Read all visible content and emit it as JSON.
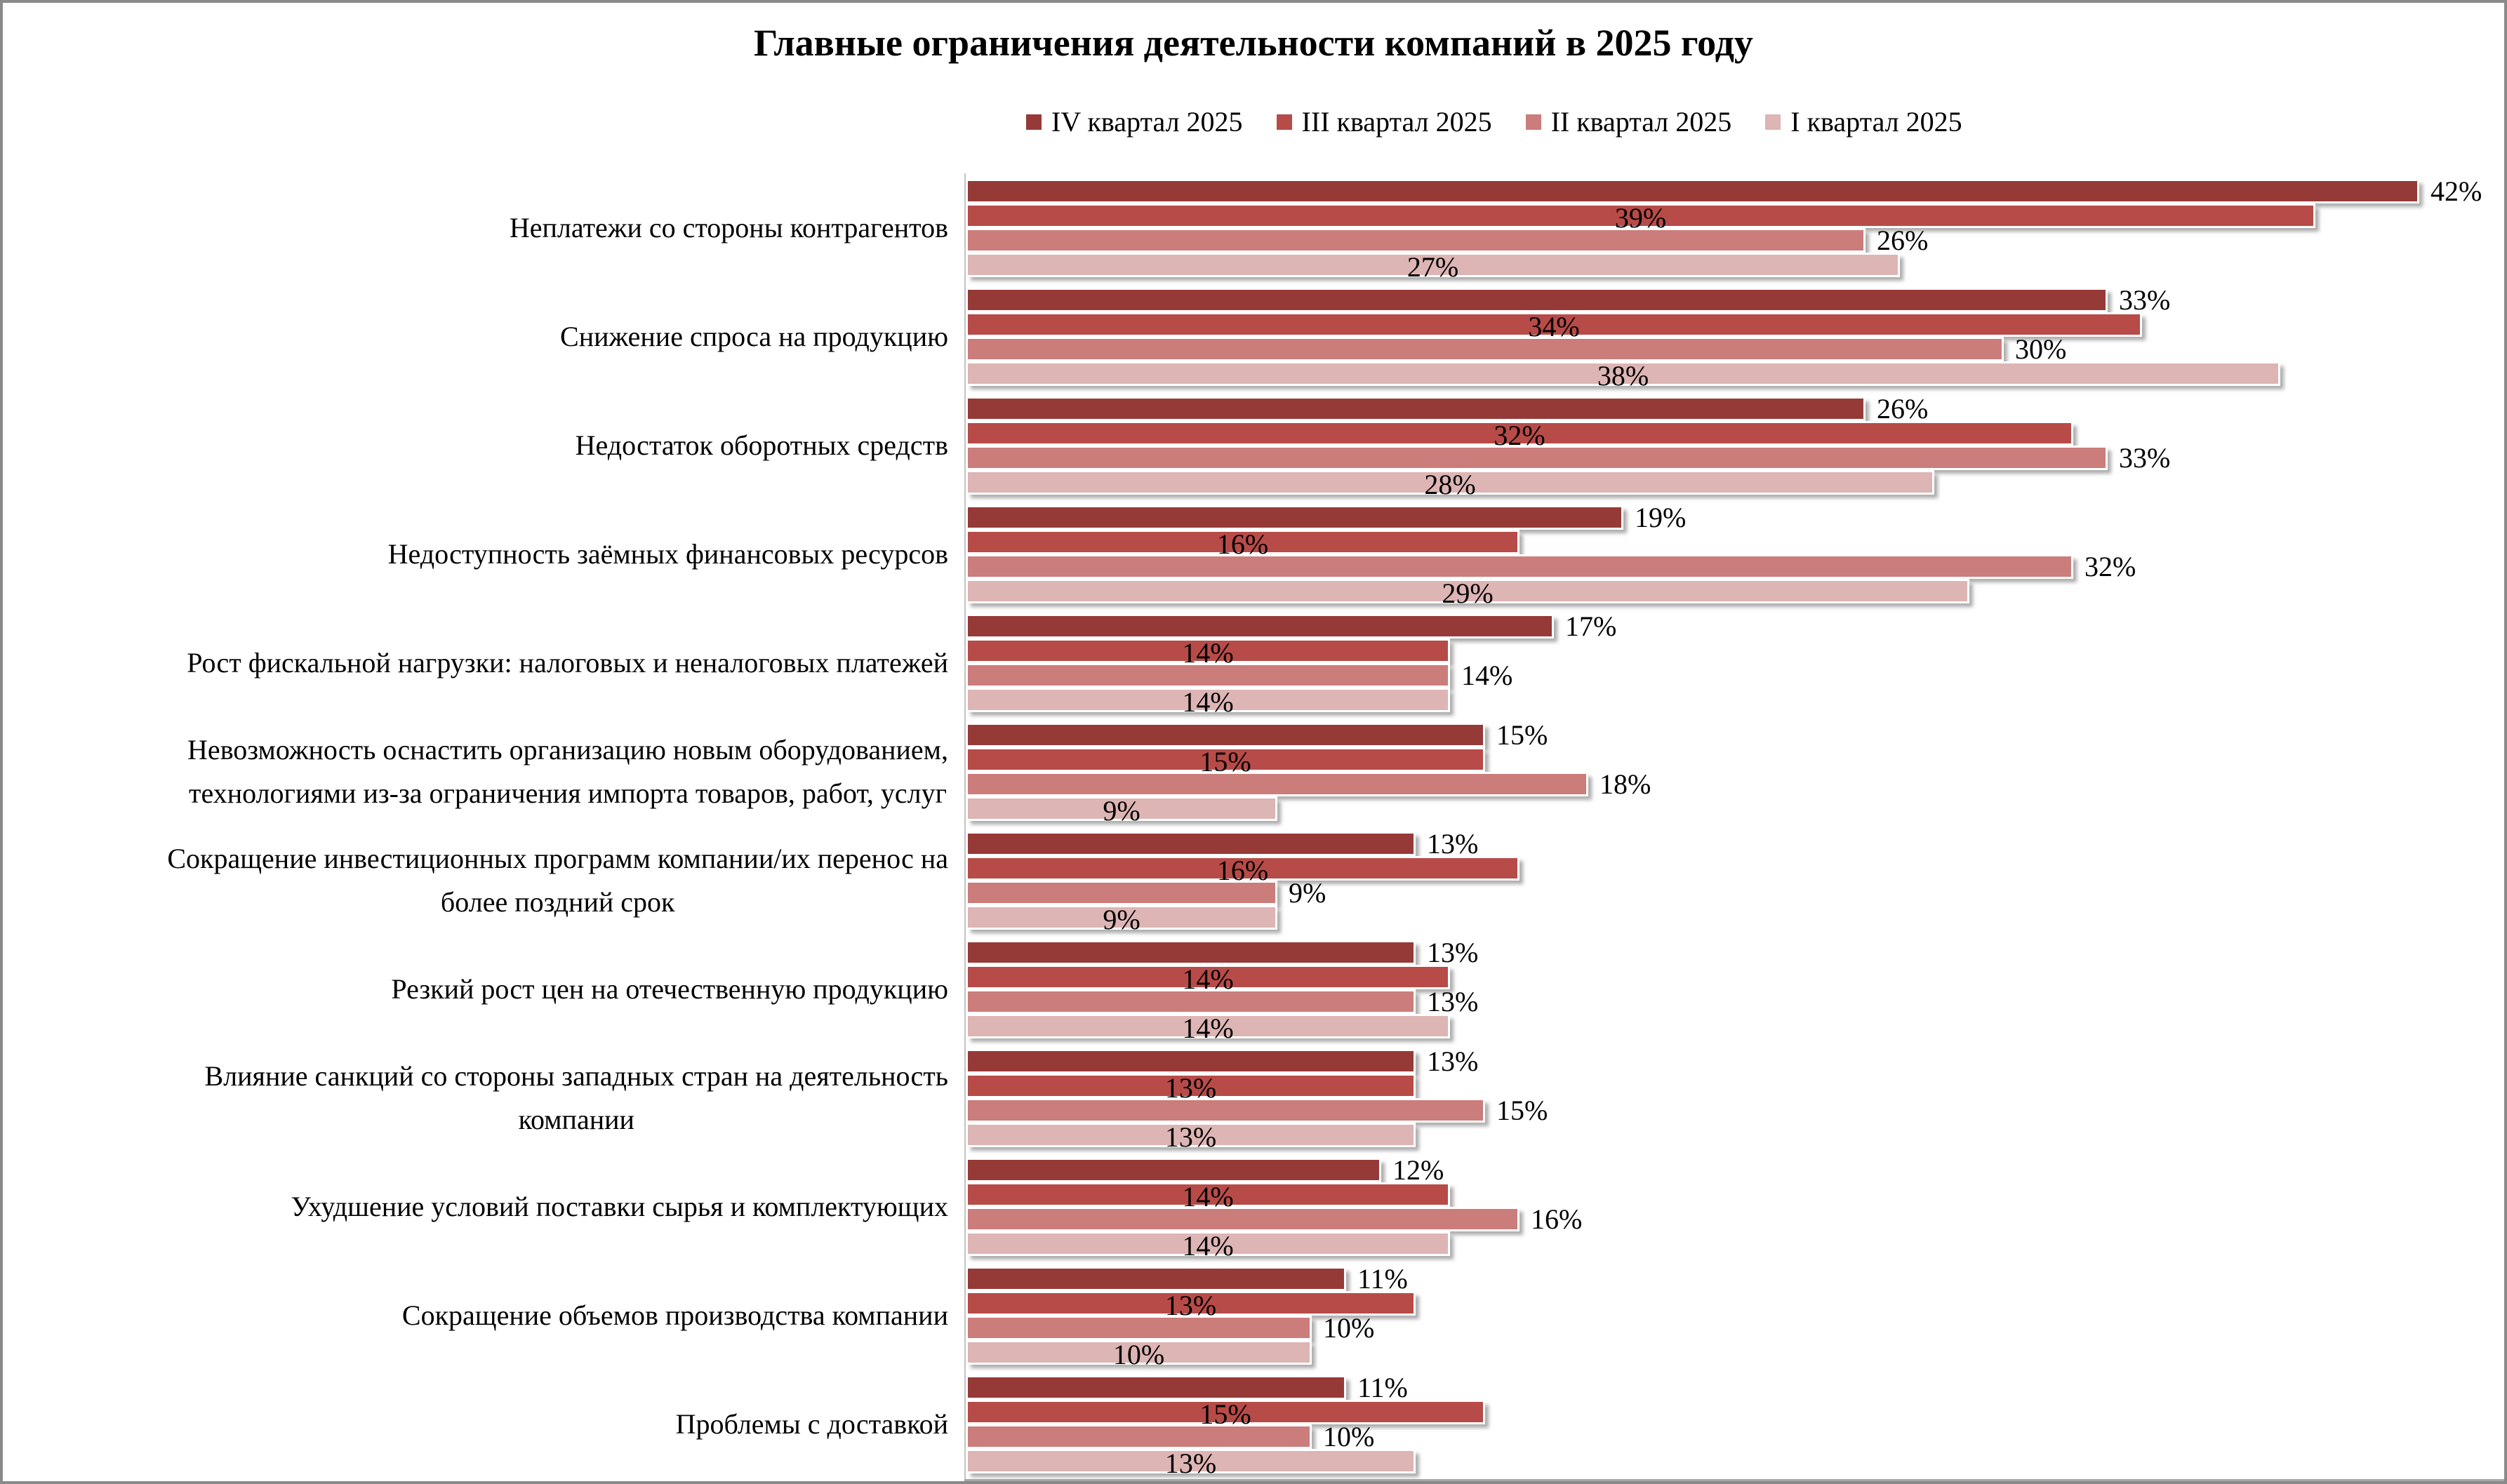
{
  "title": "Главные ограничения деятельности компаний в 2025 году",
  "chart_data": {
    "type": "bar",
    "orientation": "horizontal",
    "title": "Главные ограничения деятельности компаний в 2025 году",
    "legend_position": "top",
    "grid": false,
    "value_suffix": "%",
    "xlim": [
      0,
      44
    ],
    "categories": [
      "Неплатежи со стороны контрагентов",
      "Снижение спроса на продукцию",
      "Недостаток оборотных средств",
      "Недоступность заёмных финансовых ресурсов",
      "Рост фискальной нагрузки: налоговых и неналоговых платежей",
      "Невозможность оснастить организацию новым оборудованием,\nтехнологиями из-за ограничения импорта товаров, работ, услуг",
      "Сокращение инвестиционных программ компании/их перенос на\nболее поздний срок",
      "Резкий рост цен на отечественную продукцию",
      "Влияние санкций со стороны западных стран на деятельность\nкомпании",
      "Ухудшение условий поставки сырья и комплектующих",
      "Сокращение объемов производства компании",
      "Проблемы с доставкой"
    ],
    "series": [
      {
        "name": "IV квартал 2025",
        "color": "#963A38",
        "label_placement": "outside",
        "values": [
          42,
          33,
          26,
          19,
          17,
          15,
          13,
          13,
          13,
          12,
          11,
          11
        ]
      },
      {
        "name": "III квартал 2025",
        "color": "#B74B48",
        "label_placement": "center",
        "values": [
          39,
          34,
          32,
          16,
          14,
          15,
          16,
          14,
          13,
          14,
          13,
          15
        ]
      },
      {
        "name": "II квартал 2025",
        "color": "#CB7D7B",
        "label_placement": "outside",
        "values": [
          26,
          30,
          33,
          32,
          14,
          18,
          9,
          13,
          15,
          16,
          10,
          10
        ]
      },
      {
        "name": "I квартал 2025",
        "color": "#DDB5B4",
        "label_placement": "center",
        "values": [
          27,
          38,
          28,
          29,
          14,
          9,
          9,
          14,
          13,
          14,
          10,
          13
        ]
      }
    ]
  }
}
